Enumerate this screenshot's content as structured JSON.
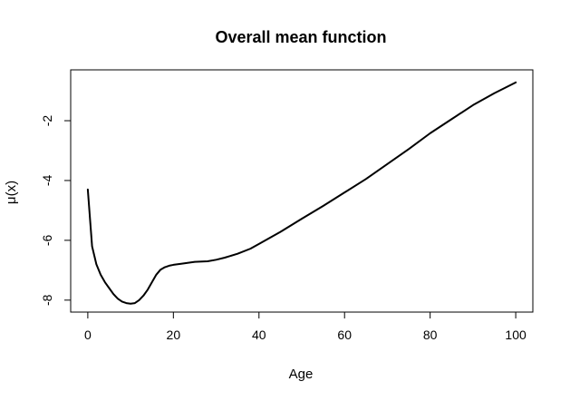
{
  "chart_data": {
    "type": "line",
    "title": "Overall mean function",
    "xlabel": "Age",
    "ylabel": "μ(x)",
    "xlim": [
      -4,
      104
    ],
    "ylim": [
      -8.4,
      -0.3
    ],
    "xticks": [
      0,
      20,
      40,
      60,
      80,
      100
    ],
    "xtick_labels": [
      "0",
      "20",
      "40",
      "60",
      "80",
      "100"
    ],
    "yticks": [
      -8,
      -6,
      -4,
      -2
    ],
    "ytick_labels": [
      "-8",
      "-6",
      "-4",
      "-2"
    ],
    "grid": false,
    "series": [
      {
        "color": "#000000",
        "x": [
          0,
          1,
          2,
          3,
          4,
          5,
          6,
          7,
          8,
          9,
          10,
          11,
          12,
          13,
          14,
          15,
          16,
          17,
          18,
          19,
          20,
          22,
          25,
          28,
          30,
          32,
          35,
          38,
          40,
          45,
          50,
          55,
          60,
          65,
          70,
          75,
          80,
          85,
          90,
          95,
          100
        ],
        "y": [
          -4.3,
          -6.2,
          -6.8,
          -7.15,
          -7.4,
          -7.6,
          -7.8,
          -7.95,
          -8.05,
          -8.1,
          -8.12,
          -8.1,
          -8.0,
          -7.85,
          -7.65,
          -7.4,
          -7.15,
          -6.98,
          -6.9,
          -6.85,
          -6.82,
          -6.78,
          -6.72,
          -6.7,
          -6.65,
          -6.58,
          -6.45,
          -6.28,
          -6.12,
          -5.72,
          -5.28,
          -4.85,
          -4.4,
          -3.95,
          -3.45,
          -2.95,
          -2.42,
          -1.95,
          -1.48,
          -1.08,
          -0.72
        ]
      }
    ]
  }
}
